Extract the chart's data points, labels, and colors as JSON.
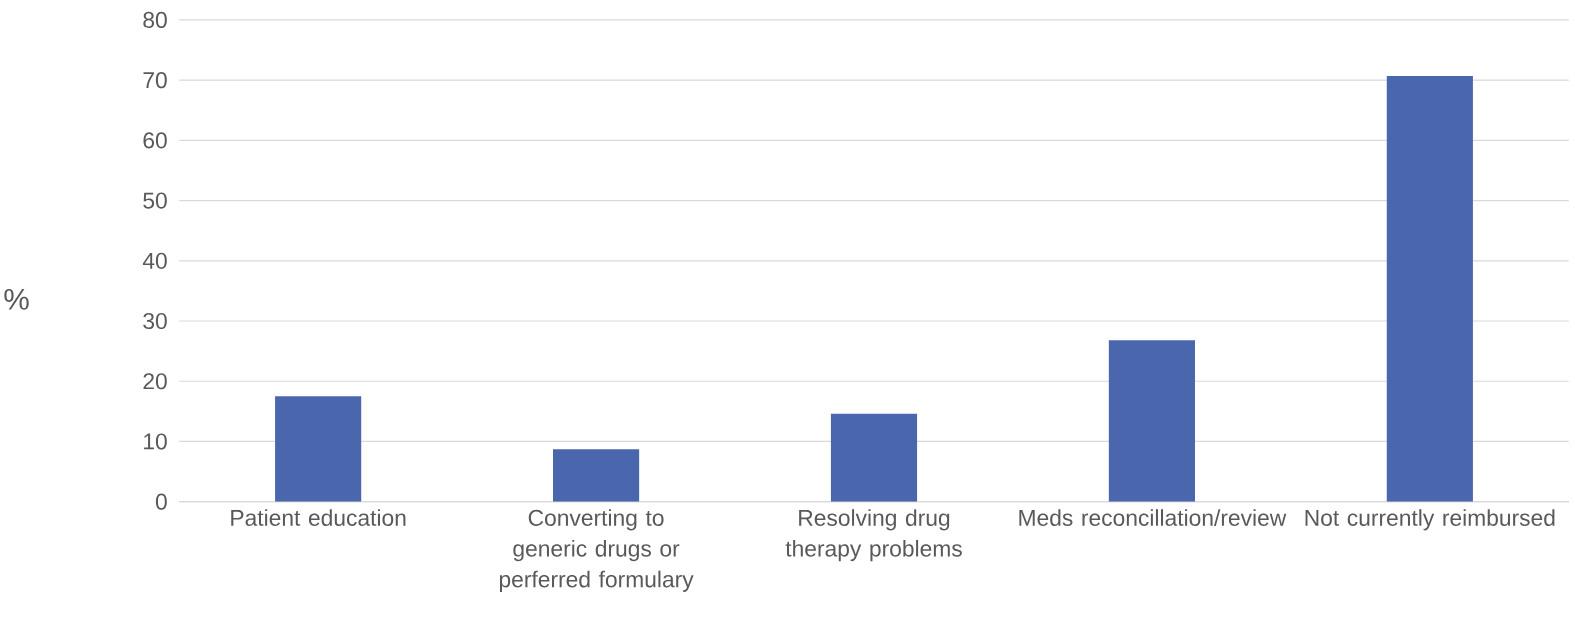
{
  "chart_data": {
    "type": "bar",
    "ylabel": "%",
    "categories": [
      "Patient education",
      "Converting to generic drugs or perferred formulary",
      "Resolving drug therapy problems",
      "Meds reconcillation/review",
      "Not currently reimbursed"
    ],
    "values": [
      17.5,
      8.7,
      14.6,
      26.8,
      70.7
    ],
    "color": "#4a66ac",
    "ylim": [
      0,
      80
    ],
    "yticks": [
      0,
      10,
      20,
      30,
      40,
      50,
      60,
      70,
      80
    ],
    "grid": "y"
  }
}
